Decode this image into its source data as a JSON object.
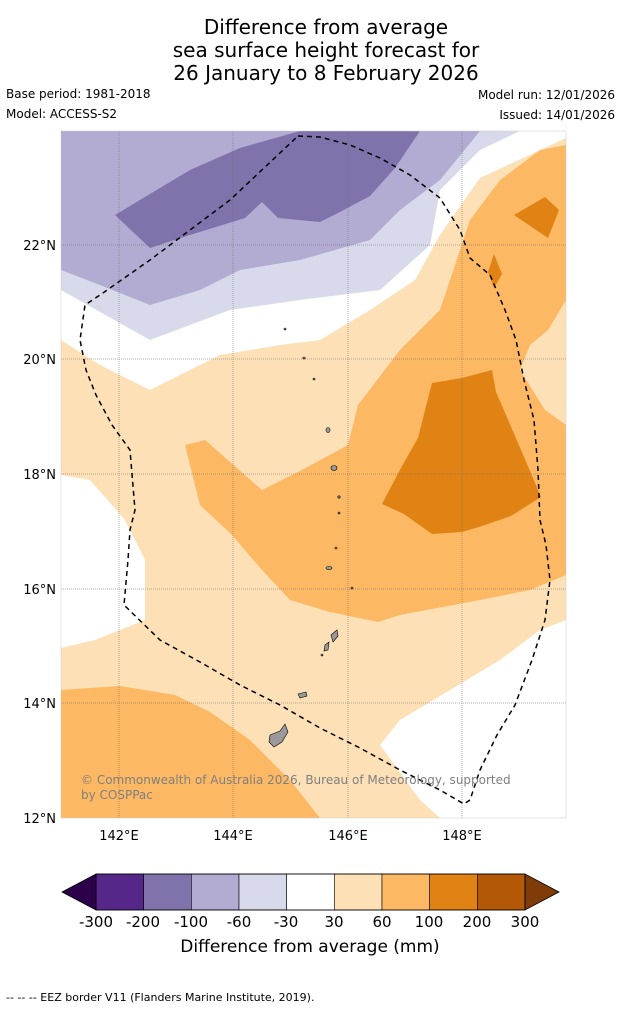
{
  "title": {
    "line1": "Difference from average",
    "line2": "sea surface height forecast for",
    "line3": "26 January to 8 February 2026"
  },
  "meta": {
    "base_period": "Base period: 1981-2018",
    "model": "Model: ACCESS-S2",
    "model_run": "Model run: 12/01/2026",
    "issued": "Issued: 14/01/2026"
  },
  "map": {
    "lat_labels": [
      "22°N",
      "20°N",
      "18°N",
      "16°N",
      "14°N",
      "12°N"
    ],
    "lon_labels": [
      "142°E",
      "144°E",
      "146°E",
      "148°E"
    ],
    "copyright": "© Commonwealth of Australia 2026, Bureau of Meteorology, supported by COSPPac"
  },
  "colorbar": {
    "label": "Difference from average (mm)",
    "ticks": [
      "-300",
      "-200",
      "-100",
      "-60",
      "-30",
      "30",
      "60",
      "100",
      "200",
      "300"
    ],
    "colors": {
      "under": "#2d004b",
      "bins": [
        "#542788",
        "#8073ac",
        "#b2abd2",
        "#d8daeb",
        "#ffffff",
        "#fee0b6",
        "#fdb863",
        "#e08214",
        "#b35806"
      ],
      "over": "#7f3b08"
    }
  },
  "footnote": "--  --  -- EEZ border V11 (Flanders Marine Institute, 2019)."
}
